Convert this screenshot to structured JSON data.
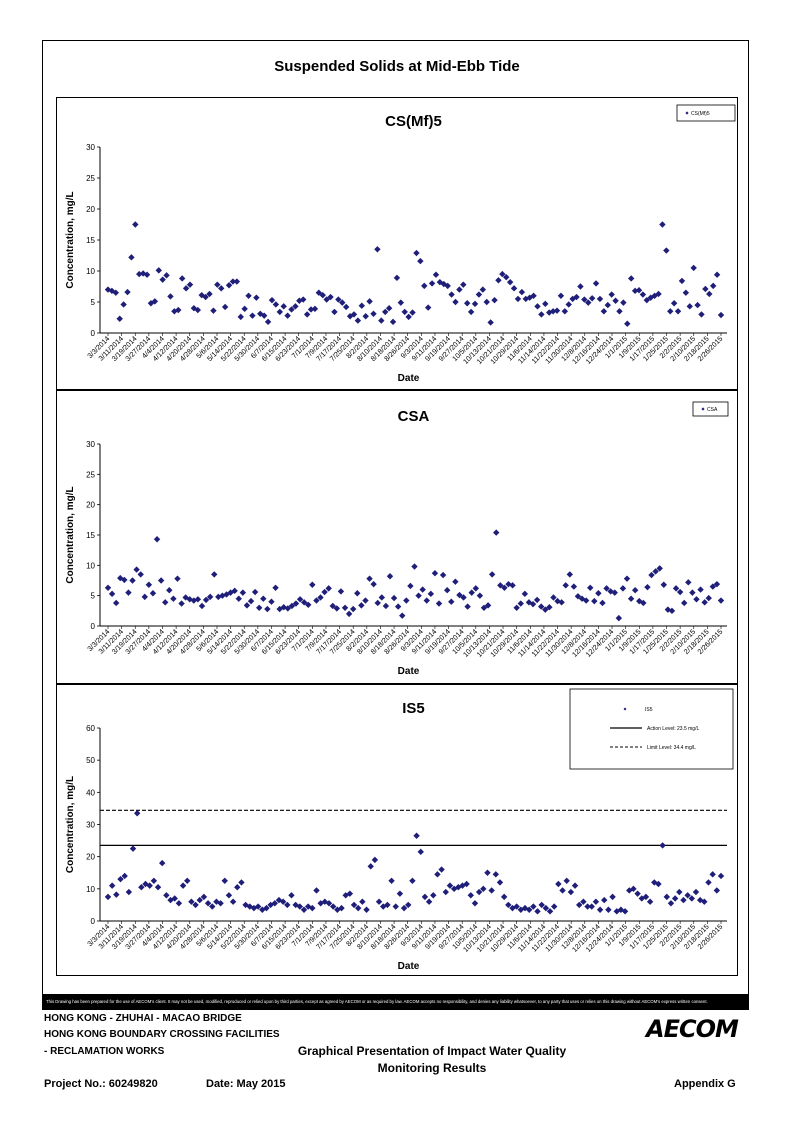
{
  "main_title": "Suspended Solids at Mid-Ebb Tide",
  "chart_data": [
    {
      "type": "scatter",
      "title": "CS(Mf)5",
      "xlabel": "Date",
      "ylabel": "Concentration, mg/L",
      "ylim": [
        0,
        30
      ],
      "yticks": [
        0,
        5,
        10,
        15,
        20,
        25,
        30
      ],
      "xticks": [
        "3/3/2014",
        "3/11/2014",
        "3/19/2014",
        "3/27/2014",
        "4/4/2014",
        "4/12/2014",
        "4/20/2014",
        "4/28/2014",
        "5/6/2014",
        "5/14/2014",
        "5/22/2014",
        "5/30/2014",
        "6/7/2014",
        "6/15/2014",
        "6/23/2014",
        "7/1/2014",
        "7/9/2014",
        "7/17/2014",
        "7/25/2014",
        "8/2/2014",
        "8/10/2014",
        "8/18/2014",
        "8/26/2014",
        "9/3/2014",
        "9/11/2014",
        "9/19/2014",
        "9/27/2014",
        "10/5/2014",
        "10/13/2014",
        "10/21/2014",
        "10/29/2014",
        "11/6/2014",
        "11/14/2014",
        "11/22/2014",
        "11/30/2014",
        "12/8/2014",
        "12/16/2014",
        "12/24/2014",
        "1/1/2015",
        "1/9/2015",
        "1/17/2015",
        "1/25/2015",
        "2/2/2015",
        "2/10/2015",
        "2/18/2015",
        "2/26/2015"
      ],
      "legend": "CS(Mf)5",
      "legend_position": "top-right",
      "color": "#1f1f7a",
      "values": [
        7,
        6.8,
        6.5,
        2.3,
        4.6,
        6.6,
        12.2,
        17.5,
        9.5,
        9.6,
        9.4,
        4.8,
        5.1,
        10.1,
        8.6,
        9.3,
        5.9,
        3.5,
        3.7,
        8.8,
        7.2,
        7.8,
        4.0,
        3.7,
        6.1,
        5.8,
        6.3,
        3.6,
        7.8,
        7.2,
        4.2,
        7.7,
        8.3,
        8.3,
        2.6,
        3.9,
        6.0,
        2.8,
        5.7,
        3.1,
        2.8,
        1.8,
        5.3,
        4.6,
        3.4,
        4.3,
        2.8,
        3.8,
        4.3,
        5.2,
        5.4,
        3.0,
        3.8,
        3.9,
        6.5,
        6.1,
        5.4,
        5.8,
        3.4,
        5.4,
        4.9,
        4.2,
        2.7,
        3.0,
        2.0,
        4.4,
        2.7,
        5.1,
        3.1,
        13.5,
        2.0,
        3.4,
        4.0,
        1.8,
        8.9,
        4.9,
        3.4,
        2.6,
        3.3,
        12.9,
        11.6,
        7.6,
        4.1,
        8.0,
        9.4,
        8.2,
        7.9,
        7.6,
        6.2,
        5.0,
        7.0,
        7.8,
        4.8,
        3.4,
        4.7,
        6.2,
        7.0,
        5.0,
        1.7,
        5.3,
        8.5,
        9.5,
        9.0,
        8.2,
        7.2,
        5.5,
        6.6,
        5.5,
        5.7,
        6.0,
        4.3,
        3.0,
        4.7,
        3.3,
        3.5,
        3.6,
        6.0,
        3.5,
        4.6,
        5.5,
        5.8,
        7.5,
        5.4,
        4.9,
        5.6,
        8.0,
        5.5,
        3.5,
        4.5,
        6.2,
        5.2,
        3.5,
        4.9,
        1.5,
        8.8,
        6.8,
        6.9,
        6.2,
        5.3,
        5.7,
        6.0,
        6.3,
        17.5,
        13.3,
        3.5,
        4.8,
        3.5,
        8.4,
        6.5,
        4.3,
        10.5,
        4.5,
        3.0,
        7.1,
        6.3,
        7.6,
        9.4,
        2.9
      ]
    },
    {
      "type": "scatter",
      "title": "CSA",
      "xlabel": "Date",
      "ylabel": "Concentration, mg/L",
      "ylim": [
        0,
        30
      ],
      "yticks": [
        0,
        5,
        10,
        15,
        20,
        25,
        30
      ],
      "xticks": [
        "3/3/2014",
        "3/11/2014",
        "3/19/2014",
        "3/27/2014",
        "4/4/2014",
        "4/12/2014",
        "4/20/2014",
        "4/28/2014",
        "5/6/2014",
        "5/14/2014",
        "5/22/2014",
        "5/30/2014",
        "6/7/2014",
        "6/15/2014",
        "6/23/2014",
        "7/1/2014",
        "7/9/2014",
        "7/17/2014",
        "7/25/2014",
        "8/2/2014",
        "8/10/2014",
        "8/18/2014",
        "8/26/2014",
        "9/3/2014",
        "9/11/2014",
        "9/19/2014",
        "9/27/2014",
        "10/5/2014",
        "10/13/2014",
        "10/21/2014",
        "10/29/2014",
        "11/6/2014",
        "11/14/2014",
        "11/22/2014",
        "11/30/2014",
        "12/8/2014",
        "12/16/2014",
        "12/24/2014",
        "1/1/2015",
        "1/9/2015",
        "1/17/2015",
        "1/25/2015",
        "2/2/2015",
        "2/10/2015",
        "2/18/2015",
        "2/26/2015"
      ],
      "legend": "CSA",
      "legend_position": "top-right",
      "color": "#1f1f7a",
      "values": [
        6.3,
        5.3,
        3.8,
        7.9,
        7.6,
        5.5,
        7.5,
        9.3,
        8.5,
        4.8,
        6.8,
        5.4,
        14.3,
        7.5,
        3.9,
        5.9,
        4.5,
        7.8,
        3.7,
        4.7,
        4.4,
        4.2,
        4.4,
        3.3,
        4.3,
        4.8,
        8.5,
        4.8,
        5.0,
        5.2,
        5.5,
        5.8,
        4.5,
        5.5,
        3.4,
        4.1,
        5.6,
        3.0,
        4.5,
        2.8,
        4.0,
        6.3,
        2.8,
        3.1,
        2.9,
        3.3,
        3.7,
        4.4,
        3.9,
        3.5,
        6.8,
        4.2,
        4.7,
        5.6,
        6.2,
        3.3,
        2.9,
        5.7,
        3.0,
        2.0,
        2.8,
        5.4,
        3.4,
        4.2,
        7.8,
        6.9,
        3.8,
        4.7,
        3.3,
        8.2,
        4.6,
        3.2,
        1.7,
        4.2,
        6.6,
        9.8,
        5.0,
        6.0,
        4.2,
        5.3,
        8.7,
        3.7,
        8.4,
        5.9,
        4.0,
        7.3,
        5.1,
        4.7,
        3.2,
        5.5,
        6.2,
        5.0,
        3.0,
        3.4,
        8.5,
        15.4,
        6.7,
        6.3,
        6.9,
        6.7,
        3.0,
        3.7,
        5.3,
        3.9,
        3.6,
        4.3,
        3.2,
        2.7,
        3.1,
        4.7,
        4.1,
        3.9,
        6.7,
        8.5,
        6.5,
        4.9,
        4.5,
        4.2,
        6.3,
        4.1,
        5.4,
        3.8,
        6.2,
        5.7,
        5.5,
        1.3,
        6.2,
        7.8,
        4.5,
        5.9,
        4.1,
        3.8,
        6.4,
        8.4,
        9.0,
        9.5,
        6.8,
        2.7,
        2.5,
        6.2,
        5.6,
        3.8,
        7.2,
        5.5,
        4.4,
        6.0,
        3.9,
        4.6,
        6.5,
        6.9,
        4.2
      ]
    },
    {
      "type": "scatter",
      "title": "IS5",
      "xlabel": "Date",
      "ylabel": "Concentration, mg/L",
      "ylim": [
        0,
        60
      ],
      "yticks": [
        0,
        10,
        20,
        30,
        40,
        50,
        60
      ],
      "xticks": [
        "3/3/2014",
        "3/11/2014",
        "3/19/2014",
        "3/27/2014",
        "4/4/2014",
        "4/12/2014",
        "4/20/2014",
        "4/28/2014",
        "5/6/2014",
        "5/14/2014",
        "5/22/2014",
        "5/30/2014",
        "6/7/2014",
        "6/15/2014",
        "6/23/2014",
        "7/1/2014",
        "7/9/2014",
        "7/17/2014",
        "7/25/2014",
        "8/2/2014",
        "8/10/2014",
        "8/18/2014",
        "8/26/2014",
        "9/3/2014",
        "9/11/2014",
        "9/19/2014",
        "9/27/2014",
        "10/5/2014",
        "10/13/2014",
        "10/21/2014",
        "10/29/2014",
        "11/6/2014",
        "11/14/2014",
        "11/22/2014",
        "11/30/2014",
        "12/8/2014",
        "12/16/2014",
        "12/24/2014",
        "1/1/2015",
        "1/9/2015",
        "1/17/2015",
        "1/25/2015",
        "2/2/2015",
        "2/10/2015",
        "2/18/2015",
        "2/26/2015"
      ],
      "legend": "IS5",
      "legend_position": "top-right",
      "color": "#1f1f7a",
      "action_level": {
        "value": 23.5,
        "label": "Action Level: 23.5 mg/L"
      },
      "limit_level": {
        "value": 34.4,
        "label": "Limit Level: 34.4 mg/L"
      },
      "values": [
        7.5,
        11.0,
        8.2,
        13.0,
        14.0,
        9.0,
        22.5,
        33.5,
        10.5,
        11.5,
        11.0,
        12.5,
        10.5,
        18.0,
        8.0,
        6.5,
        7.0,
        5.5,
        11.0,
        12.5,
        6.0,
        5.0,
        6.5,
        7.5,
        5.5,
        4.5,
        6.0,
        5.5,
        12.5,
        8.0,
        6.0,
        10.5,
        12.0,
        5.0,
        4.5,
        4.0,
        4.5,
        3.5,
        4.0,
        5.0,
        5.5,
        6.5,
        6.0,
        5.0,
        8.0,
        5.0,
        4.5,
        3.5,
        4.5,
        4.0,
        9.5,
        5.5,
        6.0,
        5.5,
        4.5,
        3.5,
        4.0,
        8.0,
        8.5,
        5.0,
        4.0,
        6.0,
        3.5,
        17.0,
        19.0,
        6.0,
        4.5,
        5.0,
        12.5,
        4.5,
        8.5,
        4.0,
        5.0,
        12.5,
        26.5,
        21.5,
        7.5,
        6.0,
        8.0,
        14.5,
        16.0,
        9.0,
        11.0,
        10.0,
        10.5,
        11.0,
        11.5,
        8.0,
        5.5,
        9.0,
        10.0,
        15.0,
        9.5,
        14.5,
        12.0,
        7.5,
        5.0,
        4.0,
        4.5,
        3.5,
        4.0,
        3.5,
        4.5,
        3.0,
        5.0,
        4.0,
        3.0,
        4.5,
        11.5,
        9.5,
        12.5,
        9.0,
        11.0,
        5.0,
        6.0,
        4.5,
        4.5,
        6.0,
        3.5,
        6.5,
        3.5,
        7.5,
        3.0,
        3.5,
        3.0,
        9.5,
        10.0,
        8.5,
        7.0,
        7.5,
        6.0,
        12.0,
        11.5,
        23.5,
        7.5,
        5.5,
        7.0,
        9.0,
        6.5,
        8.0,
        7.0,
        9.0,
        6.5,
        6.0,
        12.0,
        14.5,
        9.5,
        14.0
      ]
    }
  ],
  "footer": {
    "disclaimer": "This Drawing has been prepared for the use of AECOM's client. It may not be used, modified, reproduced or relied upon by third parties, except as agreed by AECOM or as required by law. AECOM accepts no responsibility, and denies any liability whatsoever, to any party that uses or relies on this drawing without AECOM's express written consent.",
    "line1": "HONG KONG - ZHUHAI - MACAO BRIDGE",
    "line2": "HONG KONG BOUNDARY CROSSING FACILITIES",
    "line3": "- RECLAMATION WORKS",
    "doc_title_1": "Graphical Presentation of Impact Water Quality",
    "doc_title_2": "Monitoring Results",
    "project_no": "Project No.: 60249820",
    "date": "Date: May 2015",
    "appendix": "Appendix G",
    "logo": "AECOM"
  }
}
